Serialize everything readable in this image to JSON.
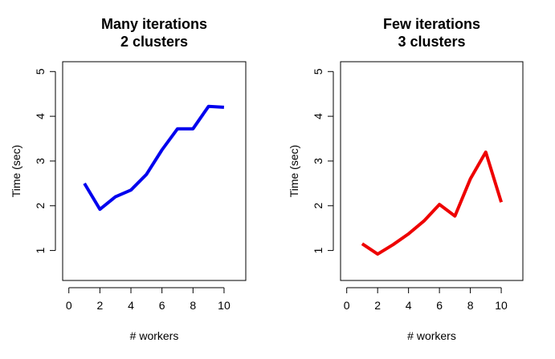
{
  "chart_data": [
    {
      "type": "line",
      "title": [
        "Many iterations",
        "2 clusters"
      ],
      "xlabel": "# workers",
      "ylabel": "Time (sec)",
      "xlim": [
        0,
        10
      ],
      "ylim": [
        1,
        5
      ],
      "xticks": [
        "0",
        "2",
        "4",
        "6",
        "8",
        "10"
      ],
      "yticks": [
        "1",
        "2",
        "3",
        "4",
        "5"
      ],
      "grid": false,
      "legend": "none",
      "series": [
        {
          "color": "#0000ee",
          "x": [
            1,
            2,
            3,
            4,
            5,
            6,
            7,
            8,
            9,
            10
          ],
          "y": [
            2.5,
            1.92,
            2.2,
            2.35,
            2.7,
            3.25,
            3.72,
            3.72,
            4.22,
            4.2
          ]
        }
      ]
    },
    {
      "type": "line",
      "title": [
        "Few iterations",
        "3 clusters"
      ],
      "xlabel": "# workers",
      "ylabel": "Time (sec)",
      "xlim": [
        0,
        10
      ],
      "ylim": [
        1,
        5
      ],
      "xticks": [
        "0",
        "2",
        "4",
        "6",
        "8",
        "10"
      ],
      "yticks": [
        "1",
        "2",
        "3",
        "4",
        "5"
      ],
      "grid": false,
      "legend": "none",
      "series": [
        {
          "color": "#ee0000",
          "x": [
            1,
            2,
            3,
            4,
            5,
            6,
            7,
            8,
            9,
            10
          ],
          "y": [
            1.15,
            0.92,
            1.13,
            1.37,
            1.66,
            2.03,
            1.77,
            2.6,
            3.2,
            2.08
          ]
        }
      ]
    }
  ]
}
